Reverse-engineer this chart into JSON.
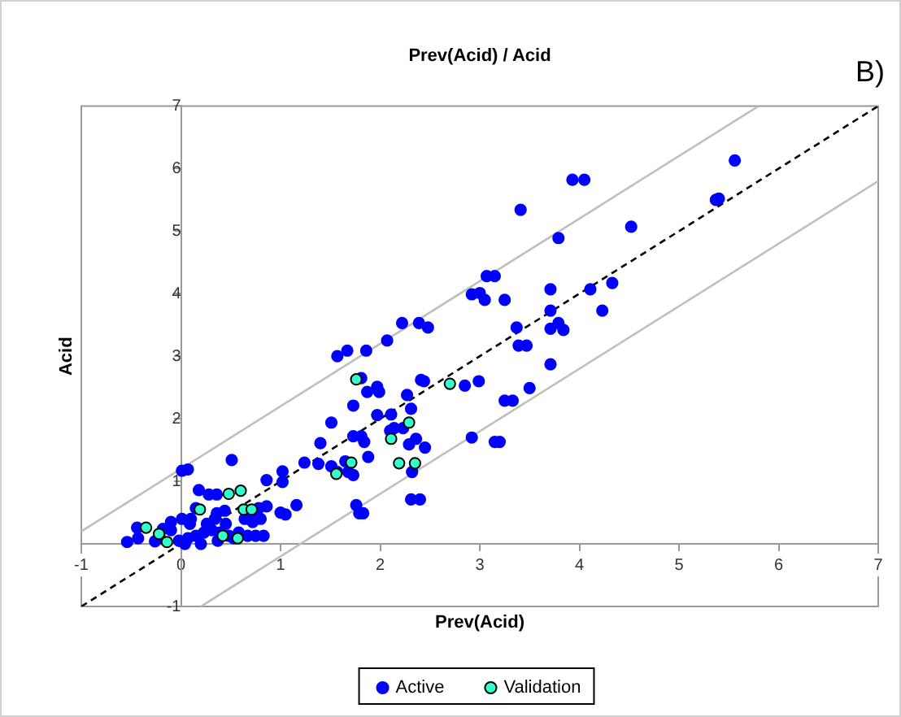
{
  "chart_data": {
    "type": "scatter",
    "title": "Prev(Acid) / Acid",
    "xlabel": "Prev(Acid)",
    "ylabel": "Acid",
    "annotations": [
      "B)"
    ],
    "xlim": [
      -1,
      7
    ],
    "ylim": [
      -1,
      7
    ],
    "xticks": [
      -1,
      0,
      1,
      2,
      3,
      4,
      5,
      6,
      7
    ],
    "yticks": [
      -1,
      {
        "value": 0,
        "label": null
      },
      1,
      2,
      3,
      4,
      5,
      6,
      7
    ],
    "grid": false,
    "legend": "bottom",
    "marker": "circle",
    "series": [
      {
        "type": "line",
        "color": "#bfbfbf",
        "line_style": "solid",
        "marker": "none",
        "x": [
          -1,
          5.8
        ],
        "values": [
          0.2,
          7
        ]
      },
      {
        "type": "line",
        "color": "#bfbfbf",
        "line_style": "solid",
        "marker": "none",
        "x": [
          0.2,
          7
        ],
        "values": [
          -1,
          5.8
        ]
      },
      {
        "type": "line",
        "color": "#000000",
        "line_style": "dashed",
        "marker": "none",
        "x": [
          -1,
          7
        ],
        "values": [
          -1,
          7
        ]
      },
      {
        "name": "Active",
        "color": "#0000ff",
        "x": [
          5.56,
          5.37,
          5.4,
          3.93,
          4.05,
          3.41,
          4.52,
          3.79,
          3.07,
          3.15,
          2.92,
          3.0,
          3.05,
          3.25,
          3.71,
          4.11,
          4.33,
          4.23,
          3.71,
          3.37,
          3.71,
          3.79,
          3.84,
          3.39,
          3.47,
          3.71,
          2.85,
          2.99,
          3.5,
          3.25,
          3.33,
          2.92,
          3.15,
          3.2,
          1.57,
          1.67,
          1.86,
          2.07,
          2.22,
          2.39,
          2.48,
          1.51,
          1.4,
          1.24,
          1.38,
          1.51,
          1.57,
          1.68,
          1.65,
          1.81,
          1.73,
          1.87,
          1.97,
          1.99,
          1.73,
          1.81,
          1.84,
          1.88,
          1.97,
          2.1,
          2.14,
          2.23,
          2.11,
          2.27,
          2.31,
          2.41,
          2.44,
          2.36,
          2.45,
          2.29,
          2.32,
          2.31,
          2.4,
          1.76,
          1.79,
          1.83,
          1.73,
          0.01,
          0.07,
          0.51,
          0.18,
          0.28,
          0.36,
          0.86,
          1.02,
          1.02,
          1.16,
          1.0,
          1.05,
          0.78,
          0.86,
          0.75,
          0.8,
          0.64,
          0.72,
          0.44,
          0.36,
          0.15,
          0.1,
          0.01,
          -0.1,
          -0.18,
          -0.1,
          -0.44,
          -0.43,
          -0.54,
          -0.21,
          -0.26,
          -0.02,
          0.07,
          0.15,
          0.23,
          0.31,
          0.39,
          0.48,
          0.04,
          0.2,
          0.37,
          0.53,
          0.67,
          0.75,
          0.83,
          0.09,
          0.26,
          0.34,
          0.45,
          0.58
        ],
        "values": [
          6.13,
          5.5,
          5.52,
          5.82,
          5.82,
          5.34,
          5.07,
          4.89,
          4.28,
          4.28,
          3.99,
          4.01,
          3.9,
          3.9,
          4.07,
          4.07,
          4.17,
          3.73,
          3.73,
          3.46,
          3.44,
          3.53,
          3.42,
          3.17,
          3.17,
          2.87,
          2.53,
          2.6,
          2.49,
          2.29,
          2.29,
          1.7,
          1.63,
          1.63,
          3.0,
          3.09,
          3.09,
          3.25,
          3.53,
          3.53,
          3.46,
          1.94,
          1.61,
          1.3,
          1.28,
          1.24,
          1.15,
          1.15,
          1.32,
          2.65,
          2.21,
          2.43,
          2.51,
          2.43,
          1.72,
          1.72,
          1.63,
          1.39,
          2.06,
          1.81,
          1.85,
          1.85,
          2.07,
          2.38,
          2.16,
          2.62,
          2.6,
          1.68,
          1.54,
          1.59,
          1.15,
          0.71,
          0.71,
          0.62,
          0.49,
          0.49,
          1.1,
          1.17,
          1.19,
          1.34,
          0.86,
          0.79,
          0.79,
          1.02,
          1.16,
          0.99,
          0.62,
          0.5,
          0.47,
          0.57,
          0.6,
          0.42,
          0.4,
          0.4,
          0.35,
          0.53,
          0.49,
          0.57,
          0.4,
          0.4,
          0.35,
          0.24,
          0.22,
          0.26,
          0.09,
          0.03,
          0.09,
          0.04,
          0.05,
          0.09,
          0.13,
          0.18,
          0.22,
          0.18,
          0.13,
          0.0,
          0.0,
          0.05,
          0.09,
          0.13,
          0.13,
          0.13,
          0.32,
          0.32,
          0.4,
          0.32,
          0.18
        ]
      },
      {
        "name": "Validation",
        "color": "#33ffcc",
        "x": [
          -0.35,
          -0.22,
          -0.14,
          0.19,
          0.48,
          0.6,
          0.63,
          0.71,
          0.42,
          0.57,
          1.56,
          1.71,
          1.76,
          2.11,
          2.19,
          2.29,
          2.35,
          2.7
        ],
        "values": [
          0.26,
          0.16,
          0.03,
          0.55,
          0.8,
          0.85,
          0.55,
          0.55,
          0.13,
          0.09,
          1.12,
          1.3,
          2.63,
          1.68,
          1.29,
          1.94,
          1.29,
          2.56
        ]
      }
    ]
  }
}
